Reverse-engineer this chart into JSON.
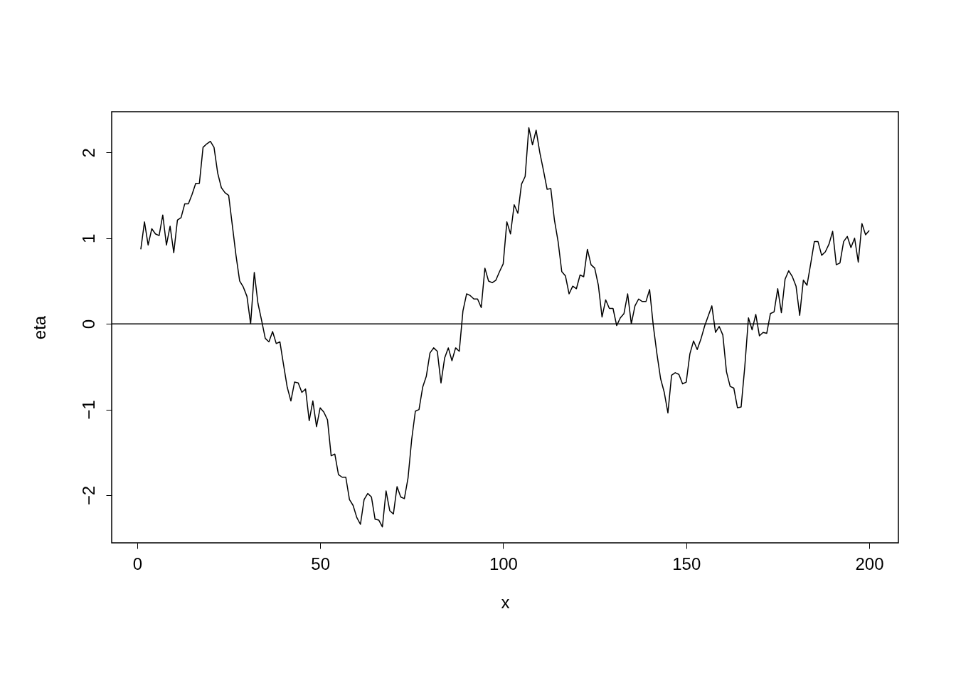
{
  "chart_data": {
    "type": "line",
    "xlabel": "x",
    "ylabel": "eta",
    "xlim": [
      -6.96,
      207.96
    ],
    "ylim": [
      -2.556,
      2.476
    ],
    "xticks": [
      0,
      50,
      100,
      150,
      200
    ],
    "yticks": [
      -2,
      -1,
      0,
      1,
      2
    ],
    "grid": false,
    "ref_lines": [
      {
        "axis": "y",
        "value": 0,
        "color": "#000000"
      }
    ],
    "series": [
      {
        "color": "#000000",
        "x": [
          1,
          2,
          3,
          4,
          5,
          6,
          7,
          8,
          9,
          10,
          11,
          12,
          13,
          14,
          15,
          16,
          17,
          18,
          19,
          20,
          21,
          22,
          23,
          24,
          25,
          26,
          27,
          28,
          29,
          30,
          31,
          32,
          33,
          34,
          35,
          36,
          37,
          38,
          39,
          40,
          41,
          42,
          43,
          44,
          45,
          46,
          47,
          48,
          49,
          50,
          51,
          52,
          53,
          54,
          55,
          56,
          57,
          58,
          59,
          60,
          61,
          62,
          63,
          64,
          65,
          66,
          67,
          68,
          69,
          70,
          71,
          72,
          73,
          74,
          75,
          76,
          77,
          78,
          79,
          80,
          81,
          82,
          83,
          84,
          85,
          86,
          87,
          88,
          89,
          90,
          91,
          92,
          93,
          94,
          95,
          96,
          97,
          98,
          99,
          100,
          101,
          102,
          103,
          104,
          105,
          106,
          107,
          108,
          109,
          110,
          111,
          112,
          113,
          114,
          115,
          116,
          117,
          118,
          119,
          120,
          121,
          122,
          123,
          124,
          125,
          126,
          127,
          128,
          129,
          130,
          131,
          132,
          133,
          134,
          135,
          136,
          137,
          138,
          139,
          140,
          141,
          142,
          143,
          144,
          145,
          146,
          147,
          148,
          149,
          150,
          151,
          152,
          153,
          154,
          155,
          156,
          157,
          158,
          159,
          160,
          161,
          162,
          163,
          164,
          165,
          166,
          167,
          168,
          169,
          170,
          171,
          172,
          173,
          174,
          175,
          176,
          177,
          178,
          179,
          180,
          181,
          182,
          183,
          184,
          185,
          186,
          187,
          188,
          189,
          190,
          191,
          192,
          193,
          194,
          195,
          196,
          197,
          198,
          199,
          200
        ],
        "values": [
          0.87,
          1.19,
          0.92,
          1.11,
          1.05,
          1.03,
          1.27,
          0.92,
          1.14,
          0.83,
          1.21,
          1.24,
          1.4,
          1.4,
          1.51,
          1.64,
          1.64,
          2.06,
          2.1,
          2.13,
          2.06,
          1.76,
          1.59,
          1.53,
          1.5,
          1.15,
          0.8,
          0.5,
          0.43,
          0.32,
          0.0,
          0.6,
          0.24,
          0.04,
          -0.17,
          -0.21,
          -0.09,
          -0.23,
          -0.21,
          -0.48,
          -0.74,
          -0.9,
          -0.68,
          -0.69,
          -0.8,
          -0.76,
          -1.13,
          -0.9,
          -1.2,
          -0.98,
          -1.03,
          -1.12,
          -1.54,
          -1.52,
          -1.76,
          -1.79,
          -1.79,
          -2.05,
          -2.12,
          -2.26,
          -2.34,
          -2.05,
          -1.98,
          -2.02,
          -2.28,
          -2.29,
          -2.37,
          -1.95,
          -2.18,
          -2.22,
          -1.9,
          -2.02,
          -2.04,
          -1.8,
          -1.35,
          -1.02,
          -1.0,
          -0.74,
          -0.61,
          -0.34,
          -0.28,
          -0.32,
          -0.69,
          -0.4,
          -0.28,
          -0.43,
          -0.28,
          -0.32,
          0.15,
          0.35,
          0.33,
          0.29,
          0.29,
          0.19,
          0.65,
          0.5,
          0.48,
          0.51,
          0.61,
          0.7,
          1.19,
          1.05,
          1.39,
          1.29,
          1.63,
          1.72,
          2.29,
          2.09,
          2.26,
          2.0,
          1.79,
          1.57,
          1.58,
          1.21,
          0.96,
          0.61,
          0.56,
          0.35,
          0.44,
          0.41,
          0.57,
          0.55,
          0.87,
          0.69,
          0.65,
          0.45,
          0.08,
          0.28,
          0.18,
          0.18,
          -0.02,
          0.07,
          0.12,
          0.35,
          0.0,
          0.21,
          0.29,
          0.26,
          0.26,
          0.4,
          -0.02,
          -0.35,
          -0.64,
          -0.8,
          -1.04,
          -0.6,
          -0.57,
          -0.59,
          -0.7,
          -0.68,
          -0.35,
          -0.2,
          -0.3,
          -0.18,
          -0.03,
          0.09,
          0.21,
          -0.1,
          -0.03,
          -0.13,
          -0.56,
          -0.73,
          -0.75,
          -0.98,
          -0.97,
          -0.5,
          0.07,
          -0.07,
          0.11,
          -0.14,
          -0.1,
          -0.11,
          0.12,
          0.14,
          0.41,
          0.13,
          0.52,
          0.62,
          0.55,
          0.44,
          0.1,
          0.51,
          0.45,
          0.7,
          0.96,
          0.96,
          0.8,
          0.84,
          0.93,
          1.08,
          0.69,
          0.71,
          0.96,
          1.02,
          0.89,
          1.0,
          0.72,
          1.17,
          1.04,
          1.09
        ]
      }
    ]
  }
}
